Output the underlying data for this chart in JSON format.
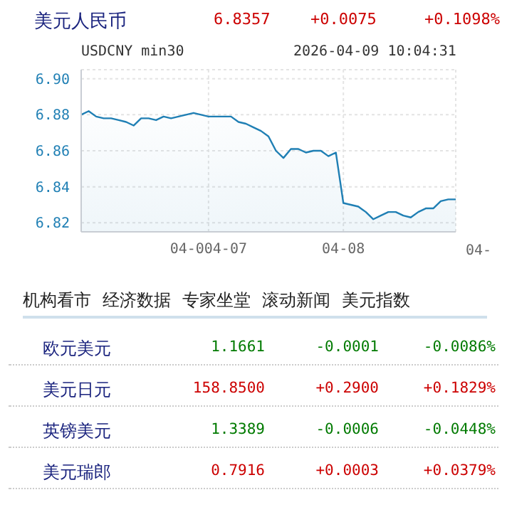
{
  "chart_data": {
    "type": "area",
    "title": "美元人民币",
    "subtitle": "USDCNY min30",
    "categories": [
      null,
      null,
      null,
      null,
      null,
      null,
      null,
      null,
      null,
      null,
      null,
      null,
      null,
      null,
      null,
      null,
      null,
      "04-004-07",
      null,
      null,
      null,
      null,
      null,
      null,
      null,
      null,
      null,
      null,
      null,
      null,
      null,
      null,
      null,
      null,
      null,
      "04-08",
      null,
      null,
      null,
      null,
      null,
      null,
      null,
      null,
      null,
      null,
      null,
      null,
      null,
      null,
      null
    ],
    "series": [
      {
        "color": "#1f7fb4",
        "values": [
          6.88,
          6.882,
          6.879,
          6.878,
          6.878,
          6.877,
          6.876,
          6.874,
          6.878,
          6.878,
          6.877,
          6.879,
          6.878,
          6.879,
          6.88,
          6.881,
          6.88,
          6.879,
          6.879,
          6.879,
          6.879,
          6.876,
          6.875,
          6.873,
          6.871,
          6.868,
          6.86,
          6.856,
          6.861,
          6.861,
          6.859,
          6.86,
          6.86,
          6.857,
          6.859,
          6.831,
          6.83,
          6.829,
          6.826,
          6.822,
          6.824,
          6.826,
          6.826,
          6.824,
          6.823,
          6.826,
          6.828,
          6.828,
          6.832,
          6.833,
          6.833
        ]
      }
    ],
    "ylim": [
      6.815,
      6.905
    ],
    "yticks": [
      6.82,
      6.84,
      6.86,
      6.88,
      {
        "value": 6.9,
        "label": "6.90"
      }
    ],
    "grid": true,
    "annotations": [
      "6.8357",
      "+0.0075",
      "+0.1098%",
      "2026-04-09 10:04:31",
      "04-",
      "机构看市",
      "经济数据",
      "专家坐堂",
      "滚动新闻",
      "美元指数",
      "欧元美元",
      "1.1661",
      "-0.0001",
      "-0.0086%",
      "美元日元",
      "158.8500",
      "+0.2900",
      "+0.1829%",
      "英镑美元",
      "1.3389",
      "-0.0006",
      "-0.0448%",
      "美元瑞郎",
      "0.7916",
      "+0.0003",
      "+0.0379%"
    ]
  }
}
